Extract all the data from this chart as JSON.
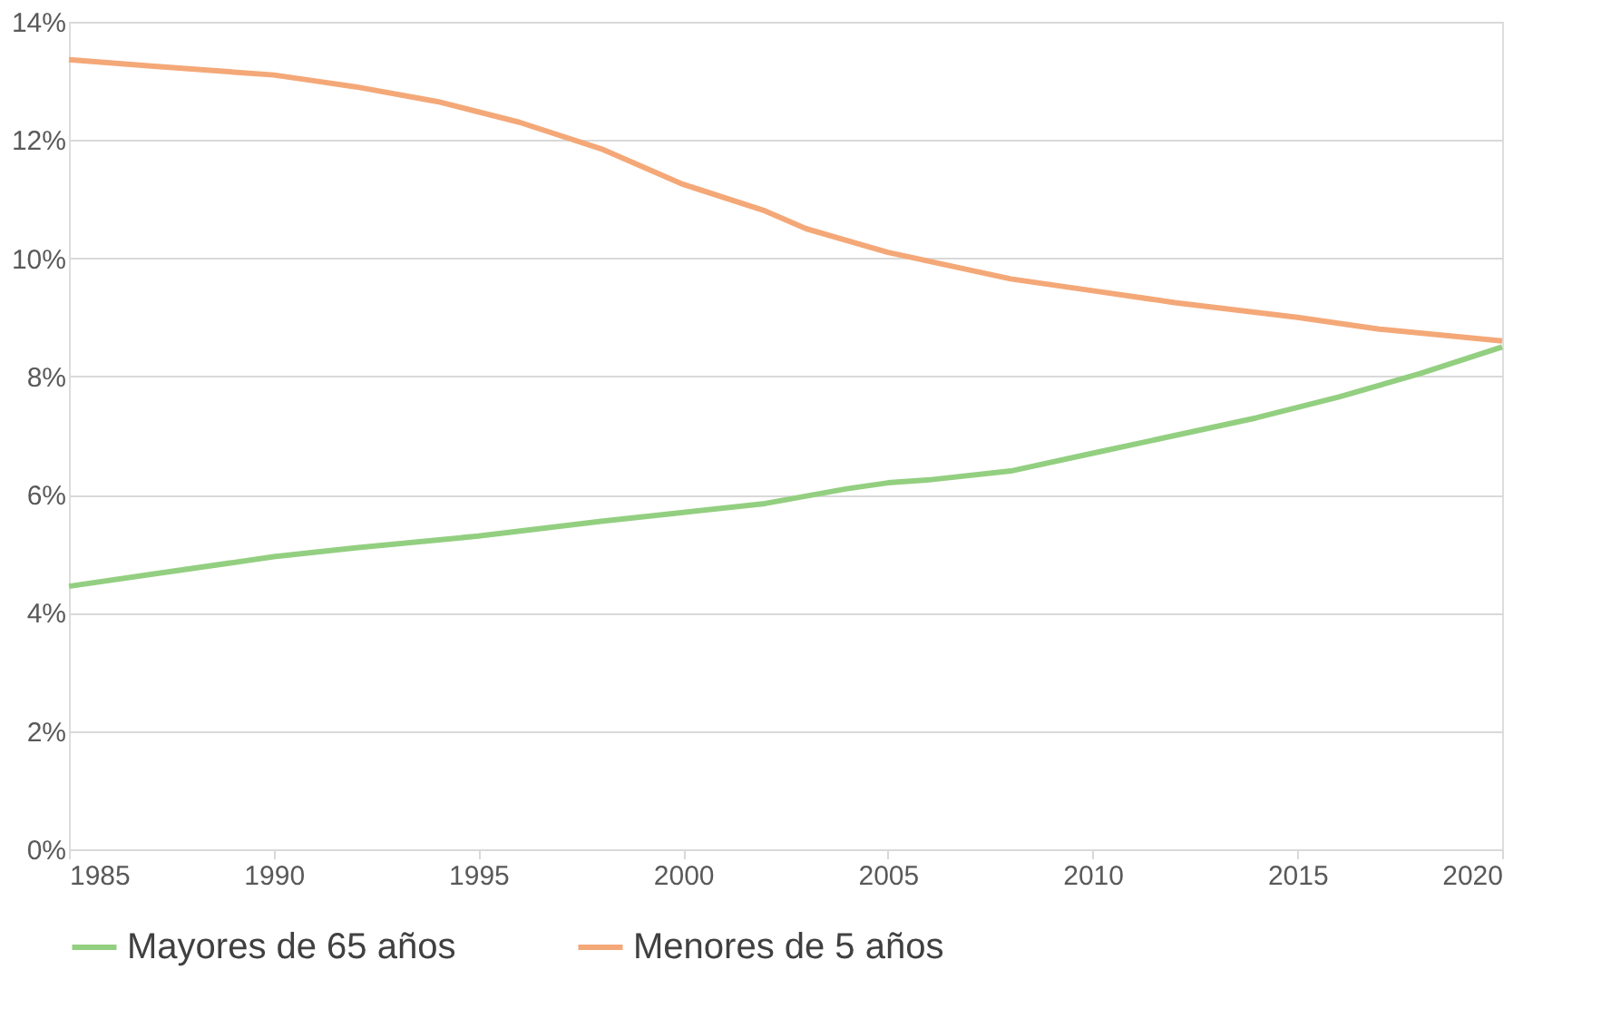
{
  "chart_data": {
    "type": "line",
    "xlim": [
      1985,
      2020
    ],
    "xticks": [
      1985,
      1990,
      1995,
      2000,
      2005,
      2010,
      2015,
      2020
    ],
    "ylim": [
      0,
      14
    ],
    "yticks": [
      {
        "value": 0,
        "label": "0%"
      },
      {
        "value": 2,
        "label": "2%"
      },
      {
        "value": 4,
        "label": "4%"
      },
      {
        "value": 6,
        "label": "6%"
      },
      {
        "value": 8,
        "label": "8%"
      },
      {
        "value": 10,
        "label": "10%"
      },
      {
        "value": 12,
        "label": "12%"
      },
      {
        "value": 14,
        "label": "14%"
      }
    ],
    "grid": "y",
    "legend": "bottom",
    "marker": "none",
    "line_style": "solid",
    "series": [
      {
        "name": "Mayores de 65 años",
        "color": "#93cf80",
        "x": [
          1985,
          1987,
          1990,
          1992,
          1995,
          1998,
          2000,
          2002,
          2004,
          2005,
          2006,
          2008,
          2010,
          2012,
          2014,
          2016,
          2018,
          2020
        ],
        "values": [
          4.45,
          4.65,
          4.95,
          5.1,
          5.3,
          5.55,
          5.7,
          5.85,
          6.1,
          6.2,
          6.25,
          6.4,
          6.7,
          7.0,
          7.3,
          7.65,
          8.05,
          8.5
        ]
      },
      {
        "name": "Menores de 5 años",
        "color": "#f4a878",
        "x": [
          1985,
          1987,
          1990,
          1991,
          1992,
          1994,
          1996,
          1998,
          2000,
          2002,
          2003,
          2005,
          2006,
          2008,
          2010,
          2012,
          2015,
          2017,
          2020
        ],
        "values": [
          13.36,
          13.25,
          13.1,
          13.0,
          12.9,
          12.65,
          12.3,
          11.85,
          11.25,
          10.8,
          10.5,
          10.1,
          9.95,
          9.65,
          9.45,
          9.25,
          9.0,
          8.8,
          8.6
        ]
      }
    ]
  }
}
